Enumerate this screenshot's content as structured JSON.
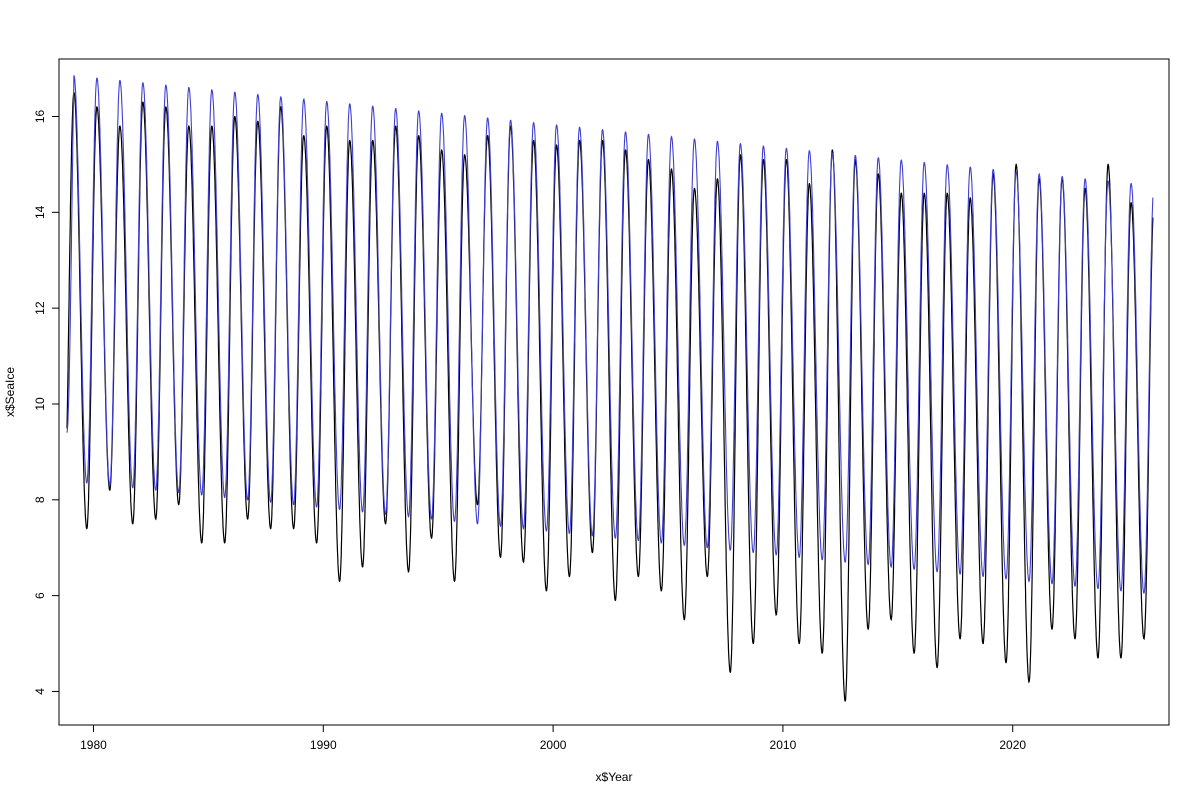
{
  "chart_data": {
    "type": "line",
    "title": "",
    "xlabel": "x$Year",
    "ylabel": "x$SeaIce",
    "xlim": [
      1978.5,
      2026.8
    ],
    "ylim": [
      3.3,
      17.2
    ],
    "x_ticks": [
      1980,
      1990,
      2000,
      2010,
      2020
    ],
    "x_tick_labels": [
      "1980",
      "1990",
      "2000",
      "2010",
      "2020"
    ],
    "y_ticks": [
      4,
      6,
      8,
      10,
      12,
      14,
      16
    ],
    "y_tick_labels": [
      "4",
      "6",
      "8",
      "10",
      "12",
      "14",
      "16"
    ],
    "grid": false,
    "legend": "none",
    "series": [
      {
        "color": "#000000",
        "style": "observed",
        "x_start": 1978.85,
        "x_end": 2026.1,
        "annual_maxima": [
          [
            1979.15,
            16.5
          ],
          [
            1980.15,
            16.2
          ],
          [
            1981.15,
            15.8
          ],
          [
            1982.15,
            16.3
          ],
          [
            1983.15,
            16.2
          ],
          [
            1984.15,
            15.8
          ],
          [
            1985.15,
            15.8
          ],
          [
            1986.15,
            16.0
          ],
          [
            1987.15,
            15.9
          ],
          [
            1988.15,
            16.2
          ],
          [
            1989.15,
            15.6
          ],
          [
            1990.15,
            15.8
          ],
          [
            1991.15,
            15.5
          ],
          [
            1992.15,
            15.5
          ],
          [
            1993.15,
            15.8
          ],
          [
            1994.15,
            15.6
          ],
          [
            1995.15,
            15.3
          ],
          [
            1996.15,
            15.2
          ],
          [
            1997.15,
            15.6
          ],
          [
            1998.15,
            15.8
          ],
          [
            1999.15,
            15.5
          ],
          [
            2000.15,
            15.4
          ],
          [
            2001.15,
            15.5
          ],
          [
            2002.15,
            15.5
          ],
          [
            2003.15,
            15.3
          ],
          [
            2004.15,
            15.1
          ],
          [
            2005.15,
            14.9
          ],
          [
            2006.15,
            14.5
          ],
          [
            2007.15,
            14.7
          ],
          [
            2008.15,
            15.2
          ],
          [
            2009.15,
            15.1
          ],
          [
            2010.15,
            15.1
          ],
          [
            2011.15,
            14.6
          ],
          [
            2012.15,
            15.3
          ],
          [
            2013.15,
            15.1
          ],
          [
            2014.15,
            14.8
          ],
          [
            2015.15,
            14.4
          ],
          [
            2016.15,
            14.4
          ],
          [
            2017.15,
            14.4
          ],
          [
            2018.15,
            14.3
          ],
          [
            2019.15,
            14.8
          ],
          [
            2020.15,
            15.0
          ],
          [
            2021.15,
            14.7
          ],
          [
            2022.15,
            14.7
          ],
          [
            2023.15,
            14.5
          ],
          [
            2024.15,
            15.0
          ],
          [
            2025.15,
            14.2
          ]
        ],
        "annual_minima": [
          [
            1979.71,
            7.4
          ],
          [
            1980.71,
            8.2
          ],
          [
            1981.71,
            7.5
          ],
          [
            1982.71,
            7.6
          ],
          [
            1983.71,
            7.9
          ],
          [
            1984.71,
            7.1
          ],
          [
            1985.71,
            7.1
          ],
          [
            1986.71,
            7.6
          ],
          [
            1987.71,
            7.4
          ],
          [
            1988.71,
            7.4
          ],
          [
            1989.71,
            7.1
          ],
          [
            1990.71,
            6.3
          ],
          [
            1991.71,
            6.6
          ],
          [
            1992.71,
            7.5
          ],
          [
            1993.71,
            6.5
          ],
          [
            1994.71,
            7.2
          ],
          [
            1995.71,
            6.3
          ],
          [
            1996.71,
            7.9
          ],
          [
            1997.71,
            6.8
          ],
          [
            1998.71,
            6.7
          ],
          [
            1999.71,
            6.1
          ],
          [
            2000.71,
            6.4
          ],
          [
            2001.71,
            6.9
          ],
          [
            2002.71,
            5.9
          ],
          [
            2003.71,
            6.4
          ],
          [
            2004.71,
            6.1
          ],
          [
            2005.71,
            5.5
          ],
          [
            2006.71,
            6.4
          ],
          [
            2007.71,
            4.4
          ],
          [
            2008.71,
            5.0
          ],
          [
            2009.71,
            5.6
          ],
          [
            2010.71,
            5.0
          ],
          [
            2011.71,
            4.8
          ],
          [
            2012.71,
            3.8
          ],
          [
            2013.71,
            5.3
          ],
          [
            2014.71,
            5.5
          ],
          [
            2015.71,
            4.8
          ],
          [
            2016.71,
            4.5
          ],
          [
            2017.71,
            5.1
          ],
          [
            2018.71,
            5.0
          ],
          [
            2019.71,
            4.6
          ],
          [
            2020.71,
            4.2
          ],
          [
            2021.71,
            5.3
          ],
          [
            2022.71,
            5.1
          ],
          [
            2023.71,
            4.7
          ],
          [
            2024.71,
            4.7
          ],
          [
            2025.71,
            5.1
          ]
        ],
        "end_value": 13.4
      },
      {
        "color": "#3f3fd0",
        "style": "fitted",
        "x_start": 1978.85,
        "x_end": 2026.1,
        "start_value": 9.4,
        "annual_maxima": [
          [
            1979.15,
            16.85
          ],
          [
            2025.15,
            14.6
          ]
        ],
        "annual_minima": [
          [
            1979.71,
            8.35
          ],
          [
            2025.71,
            6.05
          ]
        ],
        "end_value": 13.95
      }
    ]
  }
}
